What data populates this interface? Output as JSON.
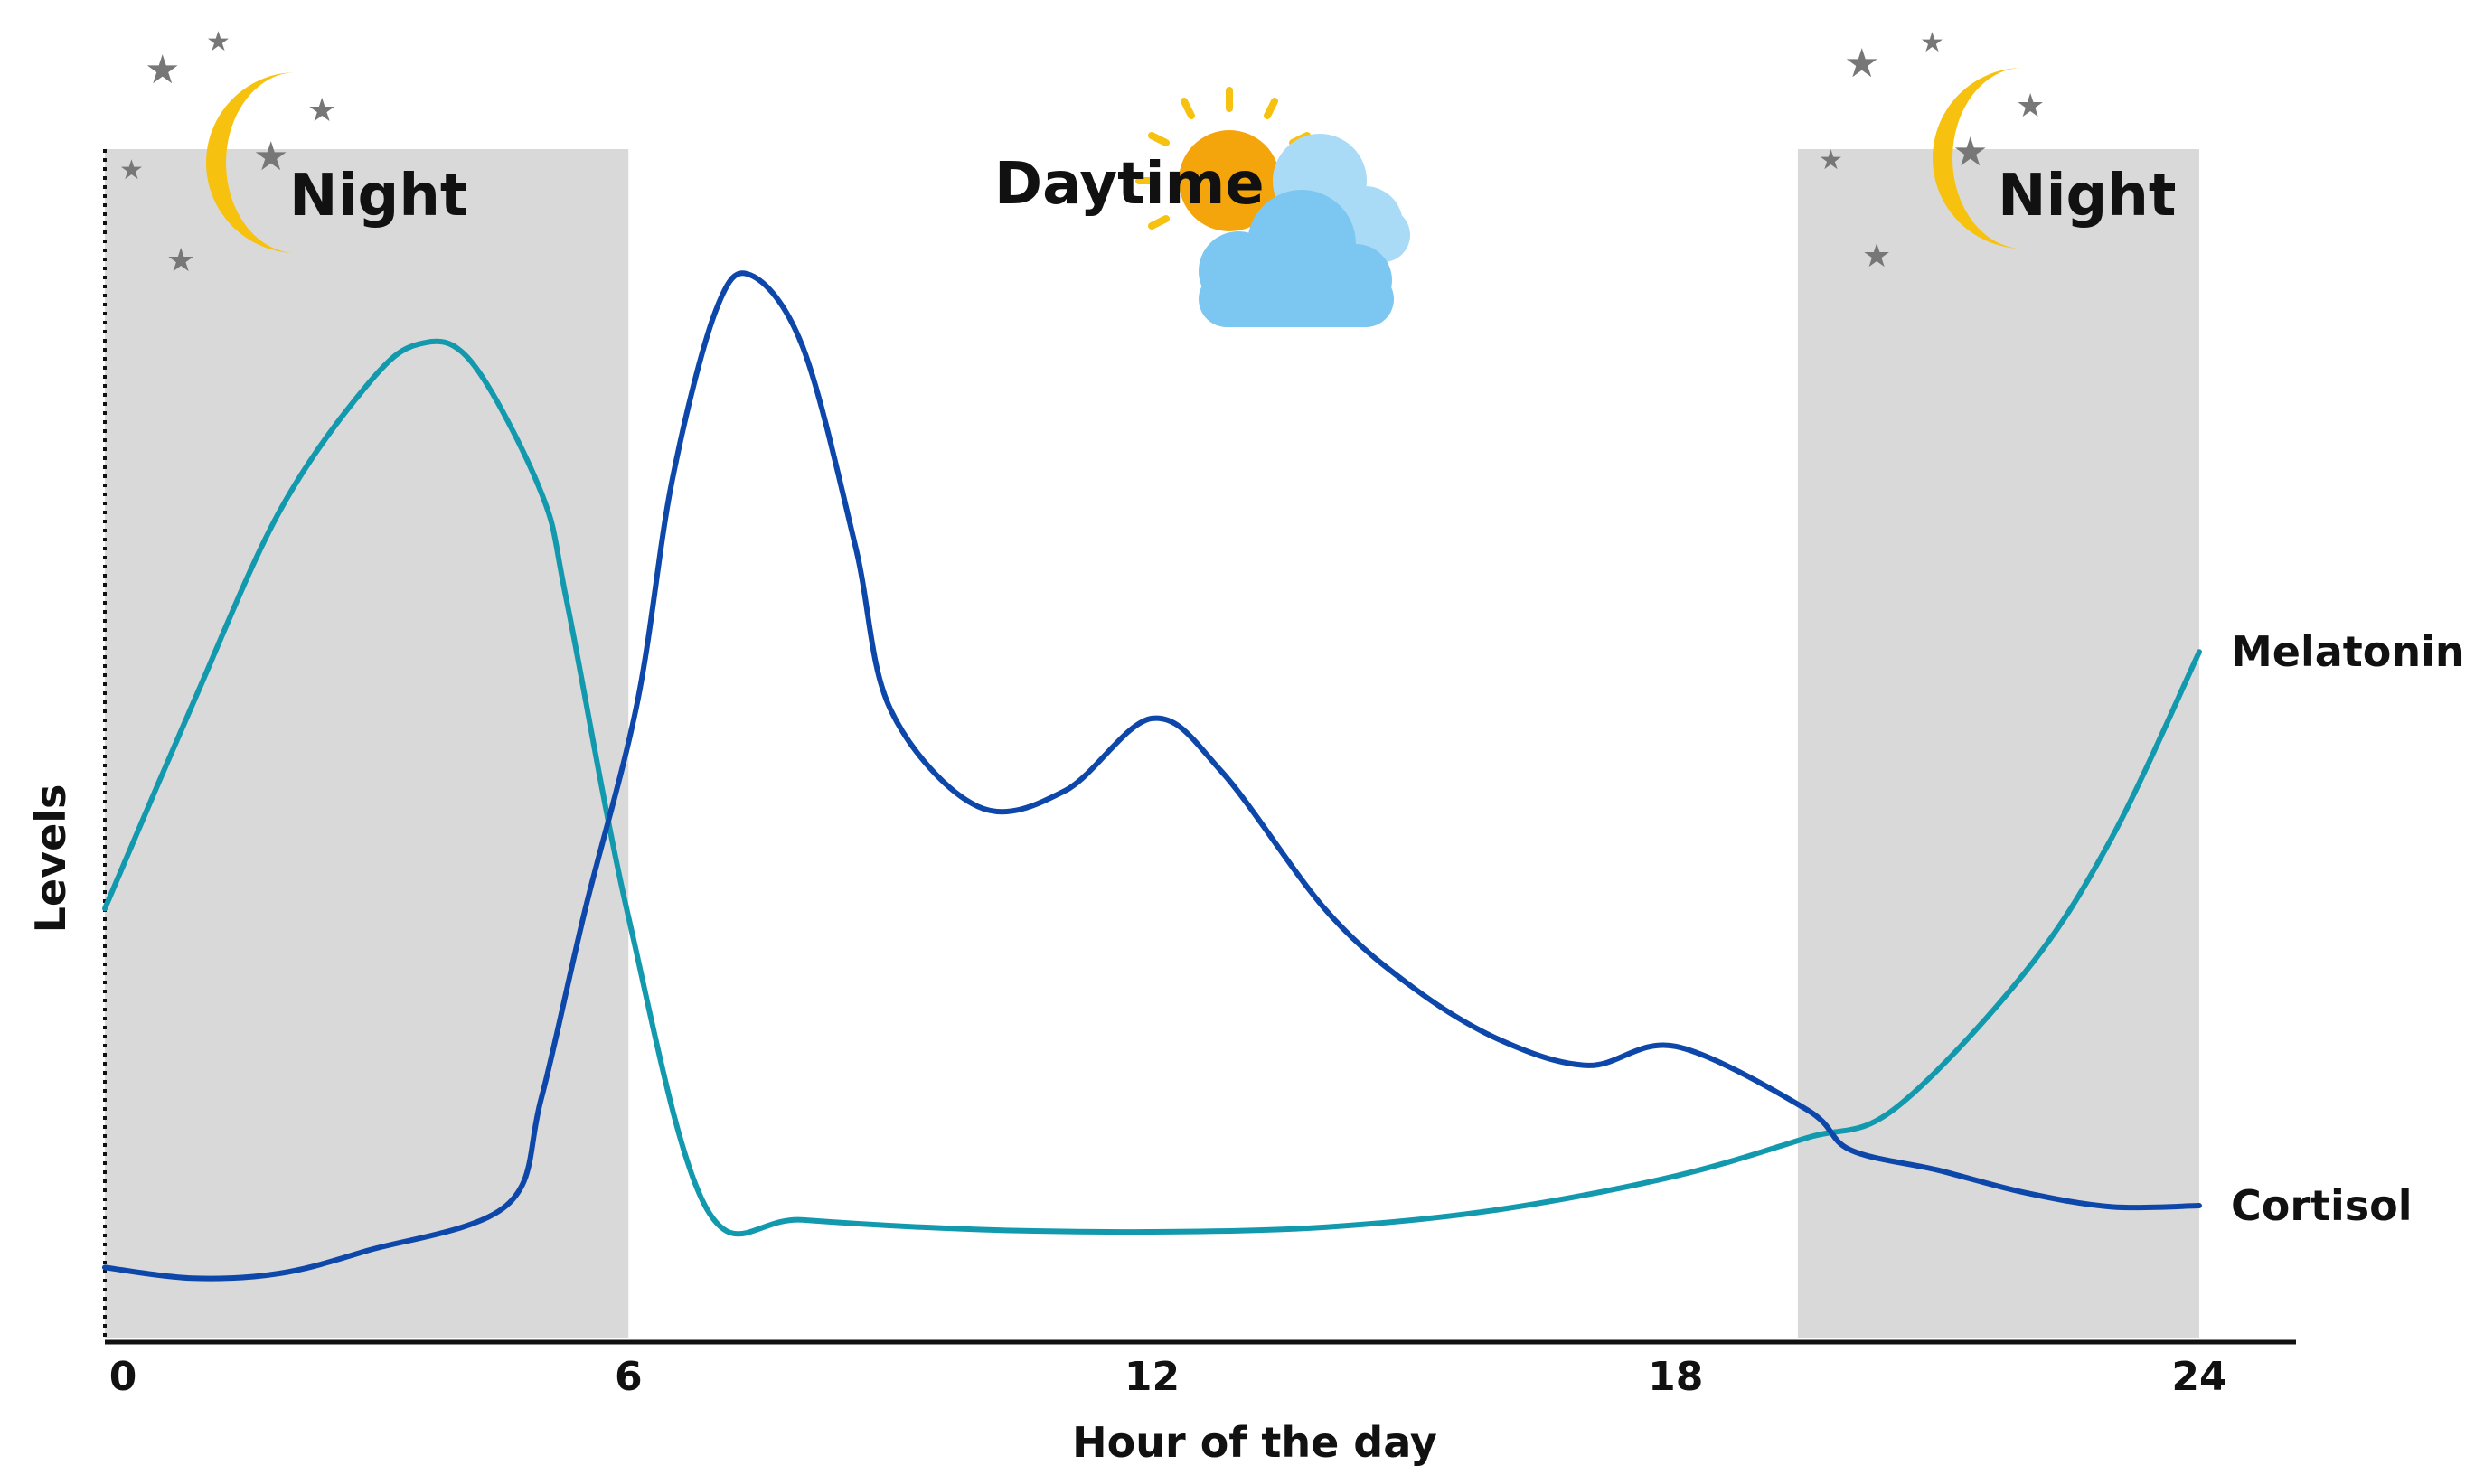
{
  "chart_data": {
    "type": "line",
    "xlabel": "Hour of the day",
    "ylabel": "Levels",
    "xlim": [
      0,
      24
    ],
    "ylim": [
      0,
      100
    ],
    "x_ticks": [
      "0",
      "6",
      "12",
      "18",
      "24"
    ],
    "grid": false,
    "regions": [
      {
        "label": "Night",
        "x_start": 0,
        "x_end": 6,
        "icon": "moon-stars-icon"
      },
      {
        "label": "Daytime",
        "x_start": 6,
        "x_end": 19.4,
        "icon": "sun-clouds-icon"
      },
      {
        "label": "Night",
        "x_start": 19.4,
        "x_end": 24,
        "icon": "moon-stars-icon"
      }
    ],
    "series": [
      {
        "name": "Melatonin",
        "color": "#1399ae",
        "points": [
          [
            0,
            36.1
          ],
          [
            1,
            53.2
          ],
          [
            2,
            69.5
          ],
          [
            3,
            80.1
          ],
          [
            3.6,
            83.6
          ],
          [
            4.2,
            82.1
          ],
          [
            5,
            71.1
          ],
          [
            5.3,
            61.7
          ],
          [
            6,
            35.4
          ],
          [
            6.9,
            10.8
          ],
          [
            8,
            9.9
          ],
          [
            10,
            9.1
          ],
          [
            12,
            8.9
          ],
          [
            14,
            9.3
          ],
          [
            16,
            10.8
          ],
          [
            18,
            13.6
          ],
          [
            19.5,
            16.8
          ],
          [
            20.5,
            19.2
          ],
          [
            22,
            30.7
          ],
          [
            23,
            42.1
          ],
          [
            24,
            57.7
          ]
        ]
      },
      {
        "name": "Cortisol",
        "color": "#0d47aa",
        "points": [
          [
            0,
            5.9
          ],
          [
            1,
            5.0
          ],
          [
            2,
            5.4
          ],
          [
            3,
            7.3
          ],
          [
            4.6,
            11.1
          ],
          [
            5,
            20.1
          ],
          [
            5.5,
            35.9
          ],
          [
            6.1,
            53.4
          ],
          [
            6.5,
            72.1
          ],
          [
            7,
            86.4
          ],
          [
            7.4,
            89.4
          ],
          [
            8,
            83.3
          ],
          [
            8.6,
            66.6
          ],
          [
            9,
            52.9
          ],
          [
            10,
            44.7
          ],
          [
            11,
            46.0
          ],
          [
            12,
            52.1
          ],
          [
            12.8,
            47.6
          ],
          [
            14,
            35.9
          ],
          [
            15,
            29.4
          ],
          [
            16,
            25.0
          ],
          [
            17,
            22.9
          ],
          [
            18,
            24.5
          ],
          [
            19.5,
            19.2
          ],
          [
            20,
            15.8
          ],
          [
            21,
            14.1
          ],
          [
            22,
            12.2
          ],
          [
            23,
            11.0
          ],
          [
            24,
            11.1
          ]
        ]
      }
    ]
  }
}
